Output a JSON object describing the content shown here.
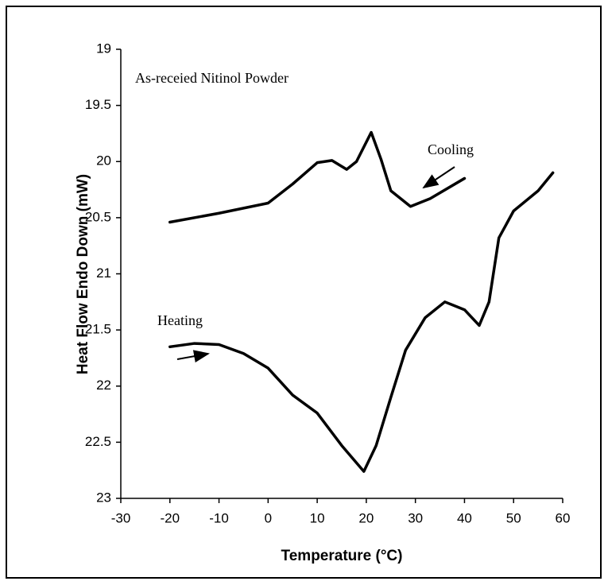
{
  "chart_data": {
    "type": "line",
    "xlabel": "Temperature (°C)",
    "ylabel": "Heat Flow Endo Down (mW)",
    "annotations": [
      "As-receied Nitinol Powder",
      "Cooling",
      "Heating"
    ],
    "xlim": [
      -30,
      60
    ],
    "xticks": [
      -30,
      -20,
      -10,
      0,
      10,
      20,
      30,
      40,
      50,
      60
    ],
    "ylim": [
      23,
      19
    ],
    "yticks": [
      19,
      19.5,
      20,
      20.5,
      21,
      21.5,
      22,
      22.5,
      23
    ],
    "series": [
      {
        "name": "Cooling",
        "color": "#000000",
        "x": [
          -20,
          -10,
          0,
          5,
          10,
          13,
          16,
          18,
          21,
          23,
          25,
          29,
          33,
          40
        ],
        "values": [
          20.54,
          20.46,
          20.37,
          20.2,
          20.01,
          19.99,
          20.07,
          20.0,
          19.74,
          19.98,
          20.26,
          20.4,
          20.33,
          20.15
        ]
      },
      {
        "name": "Heating",
        "color": "#000000",
        "x": [
          -20,
          -15,
          -10,
          -5,
          0,
          5,
          10,
          15,
          19.5,
          22,
          25,
          28,
          32,
          36,
          40,
          43,
          45,
          47,
          50,
          55,
          58
        ],
        "values": [
          21.65,
          21.62,
          21.63,
          21.71,
          21.84,
          22.08,
          22.24,
          22.53,
          22.76,
          22.53,
          22.1,
          21.68,
          21.39,
          21.25,
          21.32,
          21.46,
          21.25,
          20.68,
          20.44,
          20.26,
          20.1
        ]
      }
    ]
  }
}
